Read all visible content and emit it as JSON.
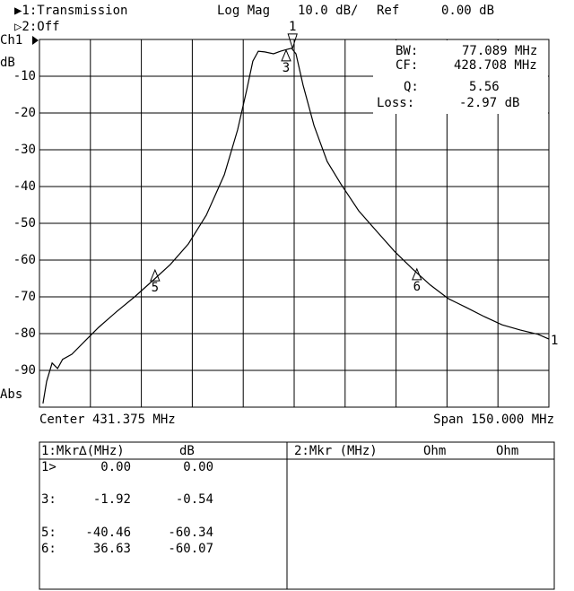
{
  "header": {
    "channel1": "▶1:Transmission",
    "format": "Log Mag",
    "scale": "10.0 dB/",
    "ref_label": "Ref",
    "ref": "0.00 dB",
    "channel2": "▷2:Off"
  },
  "chart_data": {
    "type": "line",
    "channel_label": "Ch1",
    "y_unit": "dB",
    "scale_mode": "Abs",
    "center_label": "Center 431.375 MHz",
    "span_label": "Span 150.000 MHz",
    "trace_label": "1",
    "color": "#000000",
    "xlim": [
      356.375,
      506.375
    ],
    "ylim": [
      -100,
      0
    ],
    "yticks": [
      -10,
      -20,
      -30,
      -40,
      -50,
      -60,
      -70,
      -80,
      -90
    ],
    "grid": true,
    "x": [
      357.4,
      358.5,
      360.1,
      361.7,
      363.2,
      365.9,
      369.8,
      373.8,
      379.1,
      384.4,
      389.7,
      394.9,
      400.2,
      405.5,
      410.8,
      414.7,
      417.4,
      419.2,
      420.8,
      422.7,
      425.3,
      427.4,
      429.3,
      430.6,
      431.9,
      434.0,
      437.2,
      441.1,
      445.1,
      450.4,
      455.7,
      460.9,
      466.2,
      471.5,
      476.8,
      482.1,
      487.4,
      492.6,
      497.9,
      503.2,
      506.375
    ],
    "values": [
      -99,
      -93,
      -88,
      -89.5,
      -87,
      -85.6,
      -82,
      -78.3,
      -74,
      -70,
      -65.6,
      -61.2,
      -55.6,
      -47.8,
      -36.8,
      -24.6,
      -13.7,
      -5.9,
      -3.2,
      -3.4,
      -3.9,
      -3.2,
      -2.7,
      -2.4,
      -3.9,
      -12.4,
      -23.4,
      -33.2,
      -39.3,
      -46.6,
      -52.2,
      -57.6,
      -62.4,
      -66.8,
      -70.5,
      -72.9,
      -75.4,
      -77.6,
      -79,
      -80.2,
      -81.5
    ],
    "markers": [
      {
        "label": "1",
        "x": 430.9,
        "y": -2.4,
        "direction": "down"
      },
      {
        "label": "3",
        "x": 429.0,
        "y": -2.9,
        "direction": "up"
      },
      {
        "label": "5",
        "x": 390.4,
        "y": -62.7,
        "direction": "up"
      },
      {
        "label": "6",
        "x": 467.5,
        "y": -62.4,
        "direction": "up"
      }
    ],
    "stats": [
      {
        "label": "BW:",
        "value": "77.089 MHz"
      },
      {
        "label": "CF:",
        "value": "428.708 MHz"
      },
      {
        "label": "Q:",
        "value": "5.56"
      },
      {
        "label": "Loss:",
        "value": "-2.97 dB"
      }
    ]
  },
  "table": {
    "left_header": [
      "1:Mkr∆(MHz)",
      "dB"
    ],
    "rows": [
      [
        "1>",
        "0.00",
        "0.00"
      ],
      [
        "3:",
        "-1.92",
        "-0.54"
      ],
      [
        "5:",
        "-40.46",
        "-60.34"
      ],
      [
        "6:",
        "36.63",
        "-60.07"
      ]
    ],
    "right_header": [
      "2:Mkr (MHz)",
      "Ohm",
      "Ohm"
    ]
  }
}
